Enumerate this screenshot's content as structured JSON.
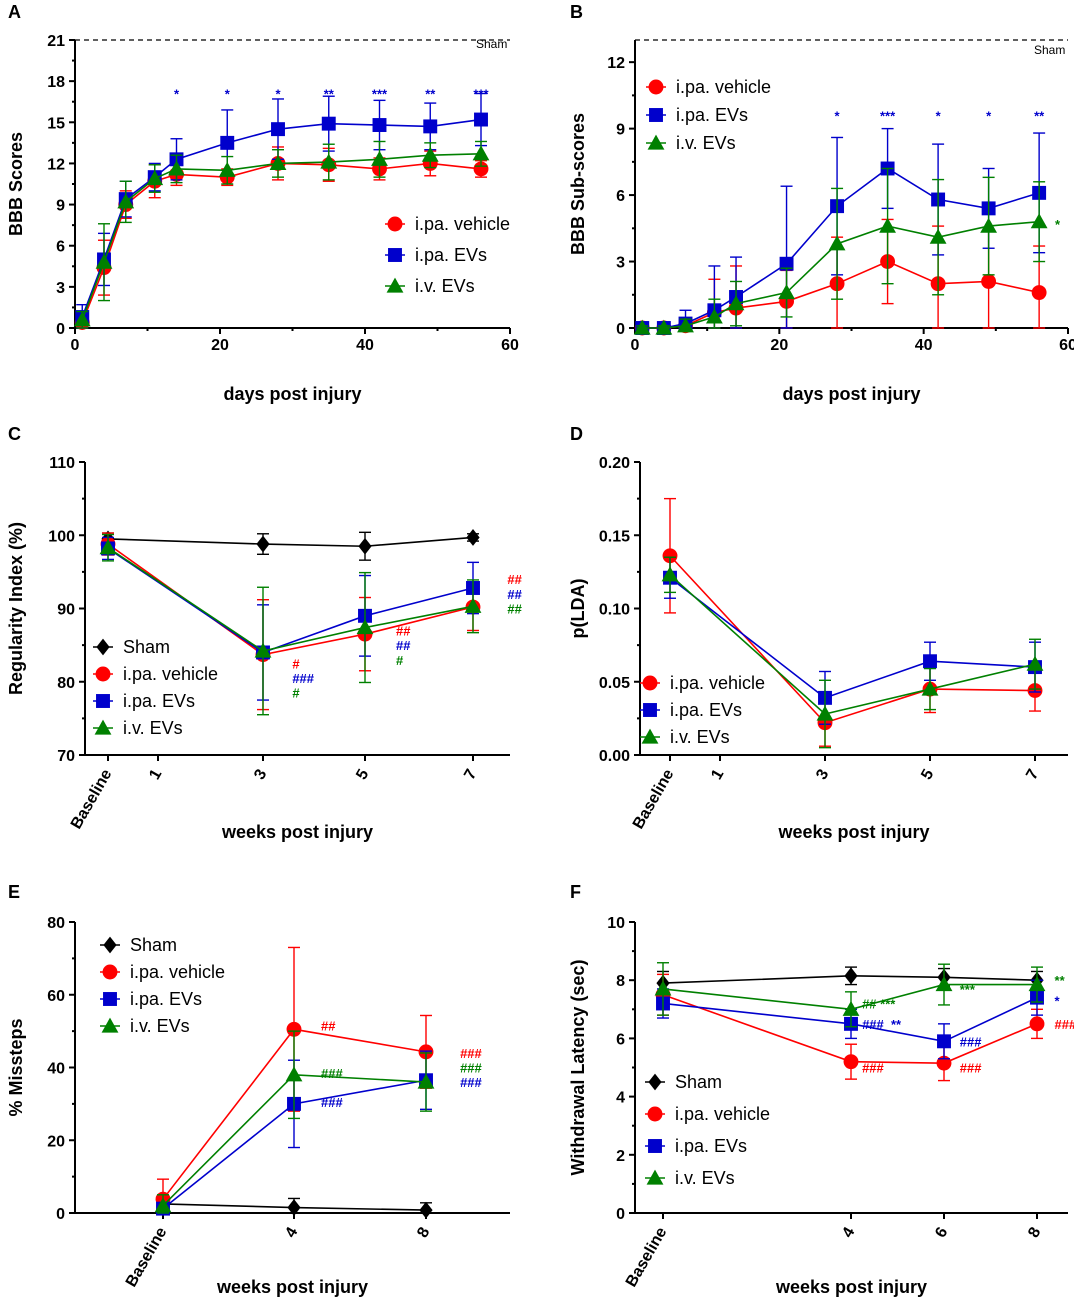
{
  "colors": {
    "sham": "#000000",
    "vehicle": "#ff0000",
    "ipa_evs": "#0000cc",
    "iv_evs": "#008000"
  },
  "chart_data": [
    {
      "panel": "A",
      "type": "line",
      "ylabel": "BBB Scores",
      "xlabel": "days post injury",
      "xlim": [
        0,
        60
      ],
      "ylim": [
        0,
        21
      ],
      "xticks": [
        0,
        20,
        40,
        60
      ],
      "xtick_labels": [
        "0",
        "20",
        "40",
        "60"
      ],
      "yticks": [
        0,
        3,
        6,
        9,
        12,
        15,
        18,
        21
      ],
      "ytick_labels": [
        "0",
        "3",
        "6",
        "9",
        "12",
        "15",
        "18",
        "21"
      ],
      "reference_line": {
        "label": "Sham",
        "value": 21
      },
      "legend_pos": "right",
      "series": [
        {
          "name": "i.pa. vehicle",
          "color": "#ff0000",
          "marker": "circle",
          "x": [
            1,
            4,
            7,
            11,
            14,
            21,
            28,
            35,
            42,
            49,
            56
          ],
          "y": [
            0.4,
            4.4,
            9.0,
            10.7,
            11.2,
            11.0,
            12.0,
            11.9,
            11.6,
            12.0,
            11.6
          ],
          "err": [
            0.3,
            2.0,
            1.0,
            1.2,
            0.8,
            0.6,
            1.2,
            1.2,
            0.8,
            0.9,
            0.6
          ]
        },
        {
          "name": "i.pa. EVs",
          "color": "#0000cc",
          "marker": "square",
          "x": [
            1,
            4,
            7,
            11,
            14,
            21,
            28,
            35,
            42,
            49,
            56
          ],
          "y": [
            0.8,
            5.0,
            9.4,
            11.0,
            12.3,
            13.5,
            14.5,
            14.9,
            14.8,
            14.7,
            15.2
          ],
          "err": [
            0.9,
            1.9,
            1.3,
            1.0,
            1.5,
            2.4,
            2.2,
            2.0,
            1.8,
            1.7,
            1.9
          ]
        },
        {
          "name": "i.v. EVs",
          "color": "#008000",
          "marker": "triangle",
          "x": [
            1,
            4,
            7,
            11,
            14,
            21,
            28,
            35,
            42,
            49,
            56
          ],
          "y": [
            0.6,
            4.8,
            9.2,
            10.9,
            11.6,
            11.5,
            12.0,
            12.1,
            12.3,
            12.6,
            12.7
          ],
          "err": [
            0.6,
            2.8,
            1.5,
            1.0,
            1.0,
            1.0,
            1.0,
            1.3,
            1.3,
            0.9,
            0.9
          ]
        }
      ],
      "annotations": [
        {
          "text": "*",
          "x": 14,
          "y": 17.1,
          "color": "#0000cc"
        },
        {
          "text": "*",
          "x": 21,
          "y": 17.1,
          "color": "#0000cc"
        },
        {
          "text": "*",
          "x": 28,
          "y": 17.1,
          "color": "#0000cc"
        },
        {
          "text": "**",
          "x": 35,
          "y": 17.1,
          "color": "#0000cc"
        },
        {
          "text": "***",
          "x": 42,
          "y": 17.1,
          "color": "#0000cc"
        },
        {
          "text": "**",
          "x": 49,
          "y": 17.1,
          "color": "#0000cc"
        },
        {
          "text": "***",
          "x": 56,
          "y": 17.1,
          "color": "#0000cc"
        }
      ]
    },
    {
      "panel": "B",
      "type": "line",
      "ylabel": "BBB Sub-scores",
      "xlabel": "days post injury",
      "xlim": [
        0,
        60
      ],
      "ylim": [
        0,
        13
      ],
      "xticks": [
        0,
        20,
        40,
        60
      ],
      "xtick_labels": [
        "0",
        "20",
        "40",
        "60"
      ],
      "yticks": [
        0,
        3,
        6,
        9,
        12
      ],
      "ytick_labels": [
        "0",
        "3",
        "6",
        "9",
        "12"
      ],
      "reference_line": {
        "label": "Sham",
        "value": 13
      },
      "legend_pos": "top-left",
      "series": [
        {
          "name": "i.pa. vehicle",
          "color": "#ff0000",
          "marker": "circle",
          "x": [
            1,
            4,
            7,
            11,
            14,
            21,
            28,
            35,
            42,
            49,
            56
          ],
          "y": [
            0.0,
            0.0,
            0.1,
            0.7,
            0.9,
            1.2,
            2.0,
            3.0,
            2.0,
            2.1,
            1.6
          ],
          "err": [
            0.1,
            0.1,
            0.2,
            1.5,
            1.9,
            1.4,
            2.1,
            1.9,
            2.6,
            2.3,
            2.1
          ]
        },
        {
          "name": "i.pa. EVs",
          "color": "#0000cc",
          "marker": "square",
          "x": [
            1,
            4,
            7,
            11,
            14,
            21,
            28,
            35,
            42,
            49,
            56
          ],
          "y": [
            0.0,
            0.0,
            0.2,
            0.8,
            1.4,
            2.9,
            5.5,
            7.2,
            5.8,
            5.4,
            6.1
          ],
          "err": [
            0.1,
            0.1,
            0.6,
            2.0,
            1.8,
            3.5,
            3.1,
            1.8,
            2.5,
            1.8,
            2.7
          ]
        },
        {
          "name": "i.v. EVs",
          "color": "#008000",
          "marker": "triangle",
          "x": [
            1,
            4,
            7,
            11,
            14,
            21,
            28,
            35,
            42,
            49,
            56
          ],
          "y": [
            0.0,
            0.0,
            0.1,
            0.5,
            1.1,
            1.6,
            3.8,
            4.6,
            4.1,
            4.6,
            4.8
          ],
          "err": [
            0.1,
            0.1,
            0.3,
            0.8,
            1.0,
            1.1,
            2.5,
            2.6,
            2.6,
            2.2,
            1.8
          ]
        }
      ],
      "annotations": [
        {
          "text": "*",
          "x": 28,
          "y": 9.6,
          "color": "#0000cc"
        },
        {
          "text": "***",
          "x": 35,
          "y": 9.6,
          "color": "#0000cc"
        },
        {
          "text": "*",
          "x": 42,
          "y": 9.6,
          "color": "#0000cc"
        },
        {
          "text": "*",
          "x": 49,
          "y": 9.6,
          "color": "#0000cc"
        },
        {
          "text": "**",
          "x": 56,
          "y": 9.6,
          "color": "#0000cc"
        },
        {
          "text": "*",
          "x": 58.2,
          "y": 4.7,
          "color": "#008000"
        }
      ]
    },
    {
      "panel": "C",
      "type": "line",
      "ylabel": "Regularity Index (%)",
      "xlabel": "weeks post injury",
      "xlim": [
        -0.6,
        7.6
      ],
      "ylim": [
        70,
        110
      ],
      "xticks": [
        0,
        1,
        3,
        5,
        7
      ],
      "xtick_labels": [
        "Baseline",
        "1",
        "3",
        "5",
        "7"
      ],
      "yticks": [
        70,
        80,
        90,
        100,
        110
      ],
      "ytick_labels": [
        "70",
        "80",
        "90",
        "100",
        "110"
      ],
      "legend_pos": "bottom-left",
      "series": [
        {
          "name": "Sham",
          "color": "#000000",
          "marker": "diamond",
          "x": [
            0,
            3,
            5,
            7
          ],
          "y": [
            99.5,
            98.8,
            98.5,
            99.7
          ],
          "err": [
            0.8,
            1.4,
            1.9,
            0.5
          ]
        },
        {
          "name": "i.pa. vehicle",
          "color": "#ff0000",
          "marker": "circle",
          "x": [
            0,
            3,
            5,
            7
          ],
          "y": [
            98.8,
            83.7,
            86.5,
            90.2
          ],
          "err": [
            1.5,
            7.5,
            5.0,
            3.2
          ]
        },
        {
          "name": "i.pa. EVs",
          "color": "#0000cc",
          "marker": "square",
          "x": [
            0,
            3,
            5,
            7
          ],
          "y": [
            98.2,
            84.0,
            89.0,
            92.8
          ],
          "err": [
            1.5,
            6.5,
            5.5,
            3.5
          ]
        },
        {
          "name": "i.v. EVs",
          "color": "#008000",
          "marker": "triangle",
          "x": [
            0,
            3,
            5,
            7
          ],
          "y": [
            98.3,
            84.2,
            87.4,
            90.3
          ],
          "err": [
            1.8,
            8.7,
            7.5,
            3.6
          ]
        }
      ],
      "annotations": [
        {
          "text": "#",
          "x": 3.4,
          "y": 82.5,
          "color": "#ff0000"
        },
        {
          "text": "###",
          "x": 3.4,
          "y": 80.5,
          "color": "#0000cc"
        },
        {
          "text": "#",
          "x": 3.4,
          "y": 78.5,
          "color": "#008000"
        },
        {
          "text": "##",
          "x": 5.4,
          "y": 87.0,
          "color": "#ff0000"
        },
        {
          "text": "##",
          "x": 5.4,
          "y": 85.0,
          "color": "#0000cc"
        },
        {
          "text": "#",
          "x": 5.4,
          "y": 83.0,
          "color": "#008000"
        },
        {
          "text": "##",
          "x": 7.55,
          "y": 94.0,
          "color": "#ff0000"
        },
        {
          "text": "##",
          "x": 7.55,
          "y": 92.0,
          "color": "#0000cc"
        },
        {
          "text": "##",
          "x": 7.55,
          "y": 90.0,
          "color": "#008000"
        }
      ]
    },
    {
      "panel": "D",
      "type": "line",
      "ylabel": "p(LDA)",
      "xlabel": "weeks post injury",
      "xlim": [
        -0.6,
        7.6
      ],
      "ylim": [
        0,
        0.2
      ],
      "xticks": [
        0,
        1,
        3,
        5,
        7
      ],
      "xtick_labels": [
        "Baseline",
        "1",
        "3",
        "5",
        "7"
      ],
      "yticks": [
        0,
        0.05,
        0.1,
        0.15,
        0.2
      ],
      "ytick_labels": [
        "0.00",
        "0.05",
        "0.10",
        "0.15",
        "0.20"
      ],
      "legend_pos": "bottom-left",
      "series": [
        {
          "name": "i.pa. vehicle",
          "color": "#ff0000",
          "marker": "circle",
          "x": [
            0,
            3,
            5,
            7
          ],
          "y": [
            0.136,
            0.022,
            0.045,
            0.044
          ],
          "err": [
            0.039,
            0.016,
            0.016,
            0.014
          ]
        },
        {
          "name": "i.pa. EVs",
          "color": "#0000cc",
          "marker": "square",
          "x": [
            0,
            3,
            5,
            7
          ],
          "y": [
            0.121,
            0.039,
            0.064,
            0.06
          ],
          "err": [
            0.014,
            0.018,
            0.013,
            0.017
          ]
        },
        {
          "name": "i.v. EVs",
          "color": "#008000",
          "marker": "triangle",
          "x": [
            0,
            3,
            5,
            7
          ],
          "y": [
            0.123,
            0.028,
            0.045,
            0.062
          ],
          "err": [
            0.012,
            0.023,
            0.014,
            0.017
          ]
        }
      ],
      "annotations": []
    },
    {
      "panel": "E",
      "type": "line",
      "ylabel": "% Missteps",
      "xlabel": "weeks post injury",
      "xlim": [
        -2.2,
        10
      ],
      "ylim": [
        0,
        80
      ],
      "xticks": [
        0,
        4,
        8
      ],
      "xtick_labels": [
        "Baseline",
        "4",
        "8"
      ],
      "yticks": [
        0,
        20,
        40,
        60,
        80
      ],
      "ytick_labels": [
        "0",
        "20",
        "40",
        "60",
        "80"
      ],
      "legend_pos": "top-left",
      "series": [
        {
          "name": "Sham",
          "color": "#000000",
          "marker": "diamond",
          "x": [
            0,
            4,
            8
          ],
          "y": [
            2.5,
            1.5,
            0.8
          ],
          "err": [
            1.5,
            2.5,
            2.0
          ]
        },
        {
          "name": "i.pa. vehicle",
          "color": "#ff0000",
          "marker": "circle",
          "x": [
            0,
            4,
            8
          ],
          "y": [
            3.8,
            50.5,
            44.3
          ],
          "err": [
            5.5,
            22.5,
            10.0
          ]
        },
        {
          "name": "i.pa. EVs",
          "color": "#0000cc",
          "marker": "square",
          "x": [
            0,
            4,
            8
          ],
          "y": [
            1.2,
            30.0,
            36.5
          ],
          "err": [
            1.5,
            12.0,
            8.0
          ]
        },
        {
          "name": "i.v. EVs",
          "color": "#008000",
          "marker": "triangle",
          "x": [
            0,
            4,
            8
          ],
          "y": [
            2.0,
            38.0,
            36.0
          ],
          "err": [
            3.0,
            12.0,
            8.0
          ]
        }
      ],
      "annotations": [
        {
          "text": "##",
          "x": 4.7,
          "y": 51.5,
          "color": "#ff0000"
        },
        {
          "text": "###",
          "x": 4.7,
          "y": 38.5,
          "color": "#008000"
        },
        {
          "text": "###",
          "x": 4.7,
          "y": 30.5,
          "color": "#0000cc"
        },
        {
          "text": "###",
          "x": 8.6,
          "y": 44.0,
          "color": "#ff0000"
        },
        {
          "text": "###",
          "x": 8.6,
          "y": 40.0,
          "color": "#008000"
        },
        {
          "text": "###",
          "x": 8.6,
          "y": 36.0,
          "color": "#0000cc"
        }
      ]
    },
    {
      "panel": "F",
      "type": "line",
      "ylabel": "Withdrawal Latency (sec)",
      "xlabel": "weeks post injury",
      "xlim": [
        -0.5,
        8.5
      ],
      "ylim": [
        0,
        10
      ],
      "xticks": [
        0,
        4,
        6,
        8
      ],
      "xtick_labels": [
        "Baseline",
        "4",
        "6",
        "8"
      ],
      "yticks": [
        0,
        2,
        4,
        6,
        8,
        10
      ],
      "ytick_labels": [
        "0",
        "2",
        "4",
        "6",
        "8",
        "10"
      ],
      "legend_pos": "bottom-left",
      "series": [
        {
          "name": "Sham",
          "color": "#000000",
          "marker": "diamond",
          "x": [
            0,
            4,
            6,
            8
          ],
          "y": [
            7.9,
            8.15,
            8.1,
            8.0
          ],
          "err": [
            0.4,
            0.3,
            0.3,
            0.3
          ]
        },
        {
          "name": "i.pa. vehicle",
          "color": "#ff0000",
          "marker": "circle",
          "x": [
            0,
            4,
            6,
            8
          ],
          "y": [
            7.5,
            5.2,
            5.15,
            6.5
          ],
          "err": [
            0.7,
            0.6,
            0.6,
            0.5
          ]
        },
        {
          "name": "i.pa. EVs",
          "color": "#0000cc",
          "marker": "square",
          "x": [
            0,
            4,
            6,
            8
          ],
          "y": [
            7.2,
            6.5,
            5.9,
            7.4
          ],
          "err": [
            0.5,
            0.5,
            0.6,
            0.6
          ]
        },
        {
          "name": "i.v. EVs",
          "color": "#008000",
          "marker": "triangle",
          "x": [
            0,
            4,
            6,
            8
          ],
          "y": [
            7.7,
            7.0,
            7.85,
            7.85
          ],
          "err": [
            0.9,
            0.6,
            0.7,
            0.6
          ]
        }
      ],
      "annotations": [
        {
          "text": "## ***",
          "x": 4.22,
          "y": 7.2,
          "color": "#008000"
        },
        {
          "text": "###  **",
          "x": 4.22,
          "y": 6.5,
          "color": "#0000cc"
        },
        {
          "text": "###",
          "x": 4.22,
          "y": 5.0,
          "color": "#ff0000"
        },
        {
          "text": "***",
          "x": 6.25,
          "y": 7.7,
          "color": "#008000"
        },
        {
          "text": "###",
          "x": 6.25,
          "y": 5.9,
          "color": "#0000cc"
        },
        {
          "text": "###",
          "x": 6.25,
          "y": 5.0,
          "color": "#ff0000"
        },
        {
          "text": "**",
          "x": 8.22,
          "y": 8.0,
          "color": "#008000"
        },
        {
          "text": "*",
          "x": 8.22,
          "y": 7.3,
          "color": "#0000cc"
        },
        {
          "text": "###",
          "x": 8.22,
          "y": 6.5,
          "color": "#ff0000"
        }
      ]
    }
  ]
}
